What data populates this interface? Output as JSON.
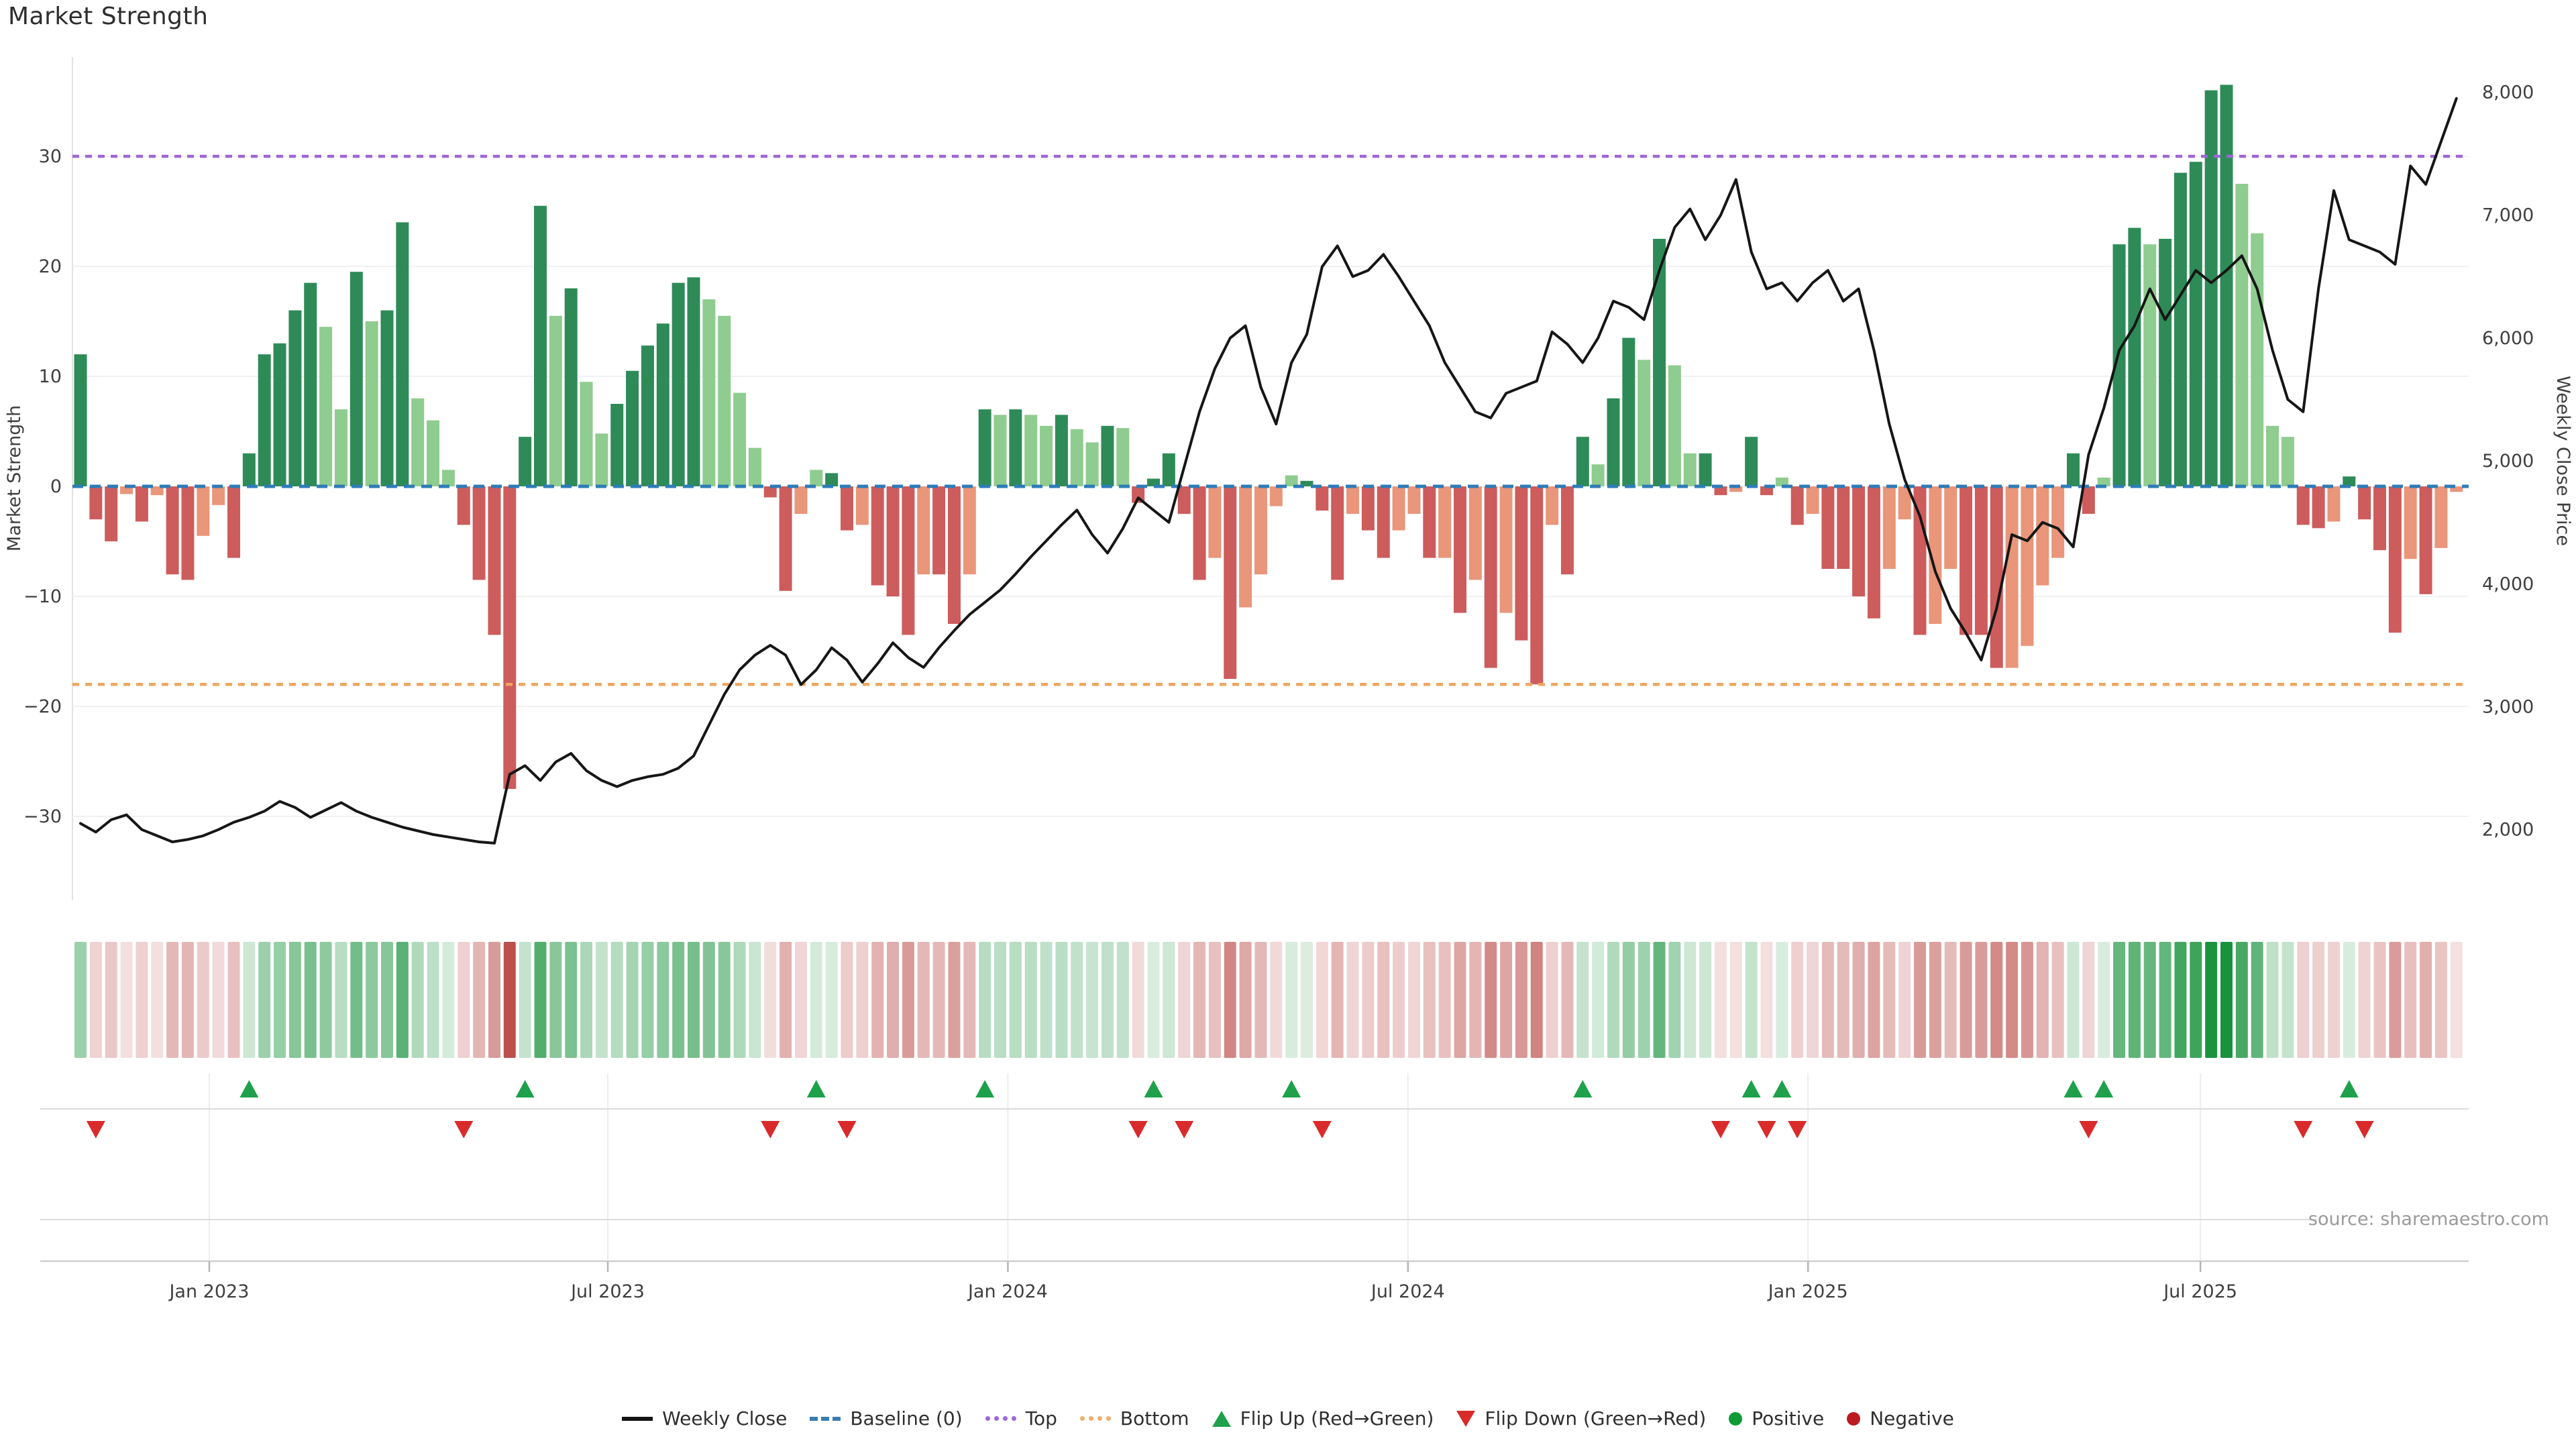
{
  "title": "Market Strength",
  "source": "source: sharemaestro.com",
  "legend": {
    "items": [
      {
        "label": "Weekly Close",
        "swatch": "line"
      },
      {
        "label": "Baseline (0)",
        "swatch": "dash"
      },
      {
        "label": "Top",
        "swatch": "dot-purple"
      },
      {
        "label": "Bottom",
        "swatch": "dot-orange"
      },
      {
        "label": "Flip Up (Red→Green)",
        "swatch": "tri-up"
      },
      {
        "label": "Flip Down (Green→Red)",
        "swatch": "tri-down"
      },
      {
        "label": "Positive",
        "swatch": "dot-pos"
      },
      {
        "label": "Negative",
        "swatch": "dot-neg"
      }
    ]
  },
  "chart_data": {
    "type": "combo",
    "x_unit": "week",
    "weeks": 156,
    "title": "Market Strength",
    "x_ticks": {
      "labels": [
        "Jan 2023",
        "Jul 2023",
        "Jan 2024",
        "Jul 2024",
        "Jan 2025",
        "Jul 2025"
      ],
      "week_positions": [
        8.4,
        34.4,
        60.5,
        86.6,
        112.7,
        138.3
      ]
    },
    "left_axis": {
      "title": "Market Strength",
      "ticks": [
        30,
        20,
        10,
        0,
        -10,
        -20,
        -30
      ],
      "tick_labels": [
        "30",
        "20",
        "10",
        "0",
        "−10",
        "−20",
        "−30"
      ],
      "range": [
        -37,
        39
      ]
    },
    "right_axis": {
      "title": "Weekly Close Price",
      "ticks": [
        8000,
        7000,
        6000,
        5000,
        4000,
        3000,
        2000
      ],
      "tick_labels": [
        "8,000",
        "7,000",
        "6,000",
        "5,000",
        "4,000",
        "3,000",
        "2,000"
      ],
      "range": [
        1650,
        8250
      ]
    },
    "reference_lines": [
      {
        "name": "Baseline (0)",
        "axis": "left",
        "value": 0,
        "style": "dashed",
        "color": "#2e7cb8"
      },
      {
        "name": "Top",
        "axis": "left",
        "value": 30,
        "style": "dotted",
        "color": "#9d66d6"
      },
      {
        "name": "Bottom",
        "axis": "left",
        "value": -18,
        "style": "dotted",
        "color": "#f2a55e"
      }
    ],
    "bar_colors": {
      "positive_dark": "#2e8b57",
      "positive_light": "#8fcc8f",
      "negative_dark": "#cd5c5c",
      "negative_light": "#e9967a"
    },
    "marker_colors": {
      "flip_up": "#1ea14a",
      "flip_down": "#d92b2b"
    },
    "marker_rule": "flip_up at first positive week after negative; flip_down at first negative week after positive",
    "heatmap": {
      "derived_from": "strength",
      "positive_color": "#18923c",
      "negative_color": "#b8433f"
    },
    "series": [
      {
        "name": "Market Strength",
        "type": "bar",
        "axis": "left",
        "values": [
          12,
          -3,
          -5,
          -0.7,
          -3.2,
          -0.8,
          -8,
          -8.5,
          -4.5,
          -1.7,
          -6.5,
          3,
          12,
          13,
          16,
          18.5,
          14.5,
          7,
          19.5,
          15,
          16,
          24,
          8,
          6,
          1.5,
          -3.5,
          -8.5,
          -13.5,
          -27.5,
          4.5,
          25.5,
          15.5,
          18,
          9.5,
          4.8,
          7.5,
          10.5,
          12.8,
          14.8,
          18.5,
          19,
          17,
          15.5,
          8.5,
          3.5,
          -1,
          -9.5,
          -2.5,
          1.5,
          1.2,
          -4,
          -3.5,
          -9,
          -10,
          -13.5,
          -8,
          -8,
          -12.5,
          -8,
          7,
          6.5,
          7,
          6.5,
          5.5,
          6.5,
          5.2,
          4,
          5.5,
          5.3,
          -1.5,
          0.7,
          3,
          -2.5,
          -8.5,
          -6.5,
          -17.5,
          -11,
          -8,
          -1.8,
          1,
          0.5,
          -2.2,
          -8.5,
          -2.5,
          -4,
          -6.5,
          -4,
          -2.5,
          -6.5,
          -6.5,
          -11.5,
          -8.5,
          -16.5,
          -11.5,
          -14,
          -18,
          -3.5,
          -8,
          4.5,
          2,
          8,
          13.5,
          11.5,
          22.5,
          11,
          3,
          3,
          -0.8,
          -0.5,
          4.5,
          -0.8,
          0.8,
          -3.5,
          -2.5,
          -7.5,
          -7.5,
          -10,
          -12,
          -7.5,
          -3,
          -13.5,
          -12.5,
          -7.5,
          -13.5,
          -13.5,
          -16.5,
          -16.5,
          -14.5,
          -9,
          -6.5,
          3,
          -2.5,
          0.8,
          22,
          23.5,
          22,
          22.5,
          28.5,
          29.5,
          36,
          36.5,
          27.5,
          23,
          5.5,
          4.5,
          -3.5,
          -3.8,
          -3.2,
          0.9,
          -3,
          -5.8,
          -13.3,
          -6.6,
          -9.8,
          -5.6,
          -0.5
        ],
        "shades": [
          "d",
          "d",
          "d",
          "l",
          "d",
          "l",
          "d",
          "d",
          "l",
          "l",
          "d",
          "d",
          "d",
          "d",
          "d",
          "d",
          "l",
          "l",
          "d",
          "l",
          "d",
          "d",
          "l",
          "l",
          "l",
          "d",
          "d",
          "d",
          "d",
          "d",
          "d",
          "l",
          "d",
          "l",
          "l",
          "d",
          "d",
          "d",
          "d",
          "d",
          "d",
          "l",
          "l",
          "l",
          "l",
          "d",
          "d",
          "l",
          "l",
          "d",
          "d",
          "l",
          "d",
          "d",
          "d",
          "l",
          "d",
          "d",
          "l",
          "d",
          "l",
          "d",
          "l",
          "l",
          "d",
          "l",
          "l",
          "d",
          "l",
          "d",
          "d",
          "d",
          "d",
          "d",
          "l",
          "d",
          "l",
          "l",
          "l",
          "l",
          "d",
          "d",
          "d",
          "l",
          "d",
          "d",
          "l",
          "l",
          "d",
          "l",
          "d",
          "l",
          "d",
          "l",
          "d",
          "d",
          "l",
          "d",
          "d",
          "l",
          "d",
          "d",
          "l",
          "d",
          "l",
          "l",
          "d",
          "d",
          "l",
          "d",
          "d",
          "l",
          "d",
          "l",
          "d",
          "d",
          "d",
          "d",
          "l",
          "l",
          "d",
          "l",
          "l",
          "d",
          "d",
          "d",
          "l",
          "l",
          "l",
          "l",
          "d",
          "d",
          "l",
          "d",
          "d",
          "l",
          "d",
          "d",
          "d",
          "d",
          "d",
          "l",
          "l",
          "l",
          "l",
          "d",
          "d",
          "l",
          "d",
          "d",
          "d",
          "d",
          "l",
          "d",
          "l",
          "l"
        ]
      },
      {
        "name": "Weekly Close",
        "type": "line",
        "axis": "right",
        "color": "#161616",
        "values": [
          2050,
          1980,
          2080,
          2120,
          2000,
          1950,
          1900,
          1920,
          1950,
          2000,
          2060,
          2100,
          2150,
          2230,
          2180,
          2100,
          2160,
          2220,
          2150,
          2100,
          2060,
          2020,
          1990,
          1960,
          1940,
          1920,
          1900,
          1890,
          2450,
          2520,
          2400,
          2550,
          2620,
          2480,
          2400,
          2350,
          2400,
          2430,
          2450,
          2500,
          2600,
          2850,
          3100,
          3300,
          3420,
          3500,
          3420,
          3180,
          3300,
          3480,
          3380,
          3200,
          3350,
          3520,
          3400,
          3320,
          3480,
          3620,
          3750,
          3850,
          3950,
          4080,
          4220,
          4350,
          4480,
          4600,
          4400,
          4250,
          4450,
          4700,
          4600,
          4500,
          4950,
          5400,
          5750,
          6000,
          6100,
          5600,
          5300,
          5800,
          6030,
          6580,
          6750,
          6500,
          6550,
          6680,
          6500,
          6300,
          6100,
          5800,
          5600,
          5400,
          5350,
          5550,
          5600,
          5650,
          6050,
          5950,
          5800,
          6000,
          6300,
          6250,
          6150,
          6550,
          6900,
          7050,
          6800,
          7000,
          7290,
          6700,
          6400,
          6450,
          6300,
          6450,
          6550,
          6300,
          6400,
          5900,
          5300,
          4850,
          4550,
          4100,
          3800,
          3600,
          3380,
          3800,
          4400,
          4350,
          4500,
          4450,
          4300,
          5050,
          5430,
          5900,
          6100,
          6400,
          6150,
          6350,
          6550,
          6450,
          6550,
          6670,
          6400,
          5900,
          5500,
          5400,
          6400,
          7200,
          6800,
          6750,
          6700,
          6600,
          7400,
          7250,
          7600,
          7950
        ]
      }
    ]
  }
}
